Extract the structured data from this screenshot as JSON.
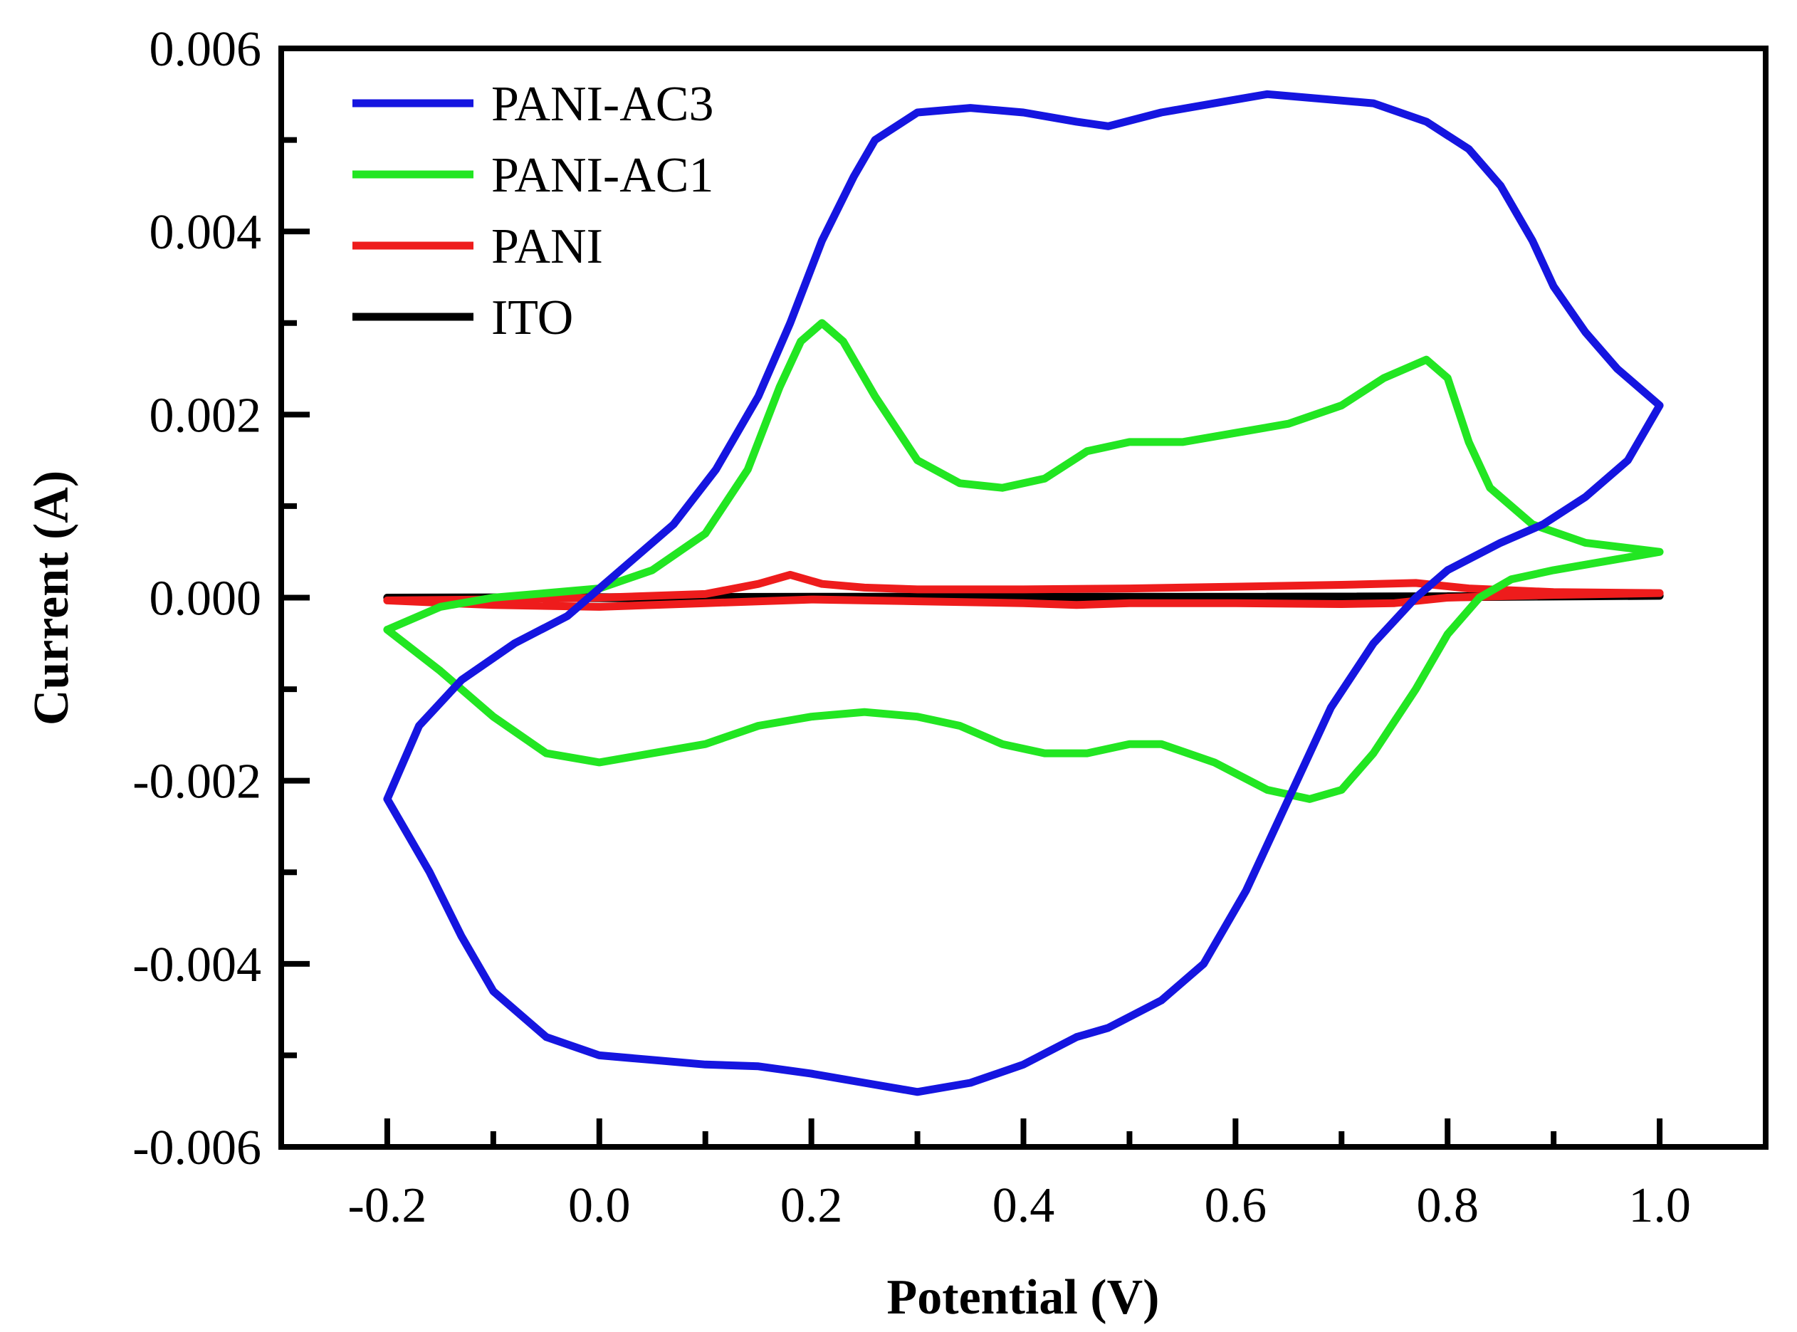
{
  "chart_data": {
    "type": "line",
    "title": "",
    "xlabel": "Potential (V)",
    "ylabel": "Current (A)",
    "xlim": [
      -0.3,
      1.1
    ],
    "ylim": [
      -0.006,
      0.006
    ],
    "x_ticks": [
      -0.2,
      0.0,
      0.2,
      0.4,
      0.6,
      0.8,
      1.0
    ],
    "x_tick_labels": [
      "-0.2",
      "0.0",
      "0.2",
      "0.4",
      "0.6",
      "0.8",
      "1.0"
    ],
    "y_ticks": [
      -0.006,
      -0.004,
      -0.002,
      0.0,
      0.002,
      0.004,
      0.006
    ],
    "y_tick_labels": [
      "-0.006",
      "-0.004",
      "-0.002",
      "0.000",
      "0.002",
      "0.004",
      "0.006"
    ],
    "legend_position": "top-left",
    "grid": false,
    "series": [
      {
        "name": "PANI-AC3",
        "color": "#1515e0",
        "points": [
          [
            -0.2,
            -0.0022
          ],
          [
            -0.17,
            -0.0014
          ],
          [
            -0.13,
            -0.0009
          ],
          [
            -0.08,
            -0.0005
          ],
          [
            -0.03,
            -0.0002
          ],
          [
            0.02,
            0.0003
          ],
          [
            0.07,
            0.0008
          ],
          [
            0.11,
            0.0014
          ],
          [
            0.15,
            0.0022
          ],
          [
            0.18,
            0.003
          ],
          [
            0.21,
            0.0039
          ],
          [
            0.24,
            0.0046
          ],
          [
            0.26,
            0.005
          ],
          [
            0.3,
            0.0053
          ],
          [
            0.35,
            0.00535
          ],
          [
            0.4,
            0.0053
          ],
          [
            0.45,
            0.0052
          ],
          [
            0.48,
            0.00515
          ],
          [
            0.53,
            0.0053
          ],
          [
            0.58,
            0.0054
          ],
          [
            0.63,
            0.0055
          ],
          [
            0.68,
            0.00545
          ],
          [
            0.73,
            0.0054
          ],
          [
            0.78,
            0.0052
          ],
          [
            0.82,
            0.0049
          ],
          [
            0.85,
            0.0045
          ],
          [
            0.88,
            0.0039
          ],
          [
            0.9,
            0.0034
          ],
          [
            0.93,
            0.0029
          ],
          [
            0.96,
            0.0025
          ],
          [
            1.0,
            0.0021
          ],
          [
            0.97,
            0.0015
          ],
          [
            0.93,
            0.0011
          ],
          [
            0.89,
            0.0008
          ],
          [
            0.85,
            0.0006
          ],
          [
            0.8,
            0.0003
          ],
          [
            0.77,
            0.0
          ],
          [
            0.73,
            -0.0005
          ],
          [
            0.69,
            -0.0012
          ],
          [
            0.65,
            -0.0022
          ],
          [
            0.61,
            -0.0032
          ],
          [
            0.57,
            -0.004
          ],
          [
            0.53,
            -0.0044
          ],
          [
            0.48,
            -0.0047
          ],
          [
            0.45,
            -0.0048
          ],
          [
            0.4,
            -0.0051
          ],
          [
            0.35,
            -0.0053
          ],
          [
            0.3,
            -0.0054
          ],
          [
            0.25,
            -0.0053
          ],
          [
            0.2,
            -0.0052
          ],
          [
            0.15,
            -0.00512
          ],
          [
            0.1,
            -0.0051
          ],
          [
            0.05,
            -0.00505
          ],
          [
            0.0,
            -0.005
          ],
          [
            -0.05,
            -0.0048
          ],
          [
            -0.1,
            -0.0043
          ],
          [
            -0.13,
            -0.0037
          ],
          [
            -0.16,
            -0.003
          ],
          [
            -0.18,
            -0.0026
          ],
          [
            -0.2,
            -0.0022
          ]
        ]
      },
      {
        "name": "PANI-AC1",
        "color": "#22e622",
        "points": [
          [
            -0.2,
            -0.00035
          ],
          [
            -0.15,
            -0.0001
          ],
          [
            -0.1,
            0.0
          ],
          [
            -0.05,
            5e-05
          ],
          [
            0.0,
            0.0001
          ],
          [
            0.05,
            0.0003
          ],
          [
            0.1,
            0.0007
          ],
          [
            0.14,
            0.0014
          ],
          [
            0.17,
            0.0023
          ],
          [
            0.19,
            0.0028
          ],
          [
            0.21,
            0.003
          ],
          [
            0.23,
            0.0028
          ],
          [
            0.26,
            0.0022
          ],
          [
            0.3,
            0.0015
          ],
          [
            0.34,
            0.00125
          ],
          [
            0.38,
            0.0012
          ],
          [
            0.42,
            0.0013
          ],
          [
            0.46,
            0.0016
          ],
          [
            0.5,
            0.0017
          ],
          [
            0.55,
            0.0017
          ],
          [
            0.6,
            0.0018
          ],
          [
            0.65,
            0.0019
          ],
          [
            0.7,
            0.0021
          ],
          [
            0.74,
            0.0024
          ],
          [
            0.78,
            0.0026
          ],
          [
            0.8,
            0.0024
          ],
          [
            0.82,
            0.0017
          ],
          [
            0.84,
            0.0012
          ],
          [
            0.88,
            0.0008
          ],
          [
            0.93,
            0.0006
          ],
          [
            1.0,
            0.0005
          ],
          [
            0.95,
            0.0004
          ],
          [
            0.9,
            0.0003
          ],
          [
            0.86,
            0.0002
          ],
          [
            0.83,
            0.0
          ],
          [
            0.8,
            -0.0004
          ],
          [
            0.77,
            -0.001
          ],
          [
            0.73,
            -0.0017
          ],
          [
            0.7,
            -0.0021
          ],
          [
            0.67,
            -0.0022
          ],
          [
            0.63,
            -0.0021
          ],
          [
            0.58,
            -0.0018
          ],
          [
            0.53,
            -0.0016
          ],
          [
            0.5,
            -0.0016
          ],
          [
            0.46,
            -0.0017
          ],
          [
            0.42,
            -0.0017
          ],
          [
            0.38,
            -0.0016
          ],
          [
            0.34,
            -0.0014
          ],
          [
            0.3,
            -0.0013
          ],
          [
            0.25,
            -0.00125
          ],
          [
            0.2,
            -0.0013
          ],
          [
            0.15,
            -0.0014
          ],
          [
            0.1,
            -0.0016
          ],
          [
            0.05,
            -0.0017
          ],
          [
            0.0,
            -0.0018
          ],
          [
            -0.05,
            -0.0017
          ],
          [
            -0.1,
            -0.0013
          ],
          [
            -0.15,
            -0.0008
          ],
          [
            -0.2,
            -0.00035
          ]
        ]
      },
      {
        "name": "PANI",
        "color": "#ee1c1c",
        "points": [
          [
            -0.2,
            -3e-05
          ],
          [
            -0.1,
            -2e-05
          ],
          [
            0.0,
            0.0
          ],
          [
            0.1,
            4e-05
          ],
          [
            0.15,
            0.00015
          ],
          [
            0.18,
            0.00025
          ],
          [
            0.21,
            0.00015
          ],
          [
            0.25,
            0.00011
          ],
          [
            0.3,
            9e-05
          ],
          [
            0.4,
            9e-05
          ],
          [
            0.5,
            0.0001
          ],
          [
            0.6,
            0.00012
          ],
          [
            0.7,
            0.00014
          ],
          [
            0.77,
            0.00016
          ],
          [
            0.82,
            0.0001
          ],
          [
            0.9,
            6e-05
          ],
          [
            1.0,
            5e-05
          ],
          [
            0.9,
            3e-05
          ],
          [
            0.8,
            0.0
          ],
          [
            0.75,
            -6e-05
          ],
          [
            0.7,
            -7e-05
          ],
          [
            0.6,
            -6e-05
          ],
          [
            0.5,
            -6e-05
          ],
          [
            0.45,
            -8e-05
          ],
          [
            0.4,
            -6e-05
          ],
          [
            0.3,
            -4e-05
          ],
          [
            0.2,
            -2e-05
          ],
          [
            0.1,
            -6e-05
          ],
          [
            0.0,
            -0.0001
          ],
          [
            -0.1,
            -8e-05
          ],
          [
            -0.2,
            -3e-05
          ]
        ]
      },
      {
        "name": "ITO",
        "color": "#000000",
        "points": [
          [
            -0.2,
            0.0
          ],
          [
            0.2,
            1e-05
          ],
          [
            0.6,
            1e-05
          ],
          [
            1.0,
            2e-05
          ],
          [
            0.6,
            -1e-05
          ],
          [
            0.2,
            -1e-05
          ],
          [
            -0.2,
            0.0
          ]
        ]
      }
    ]
  }
}
